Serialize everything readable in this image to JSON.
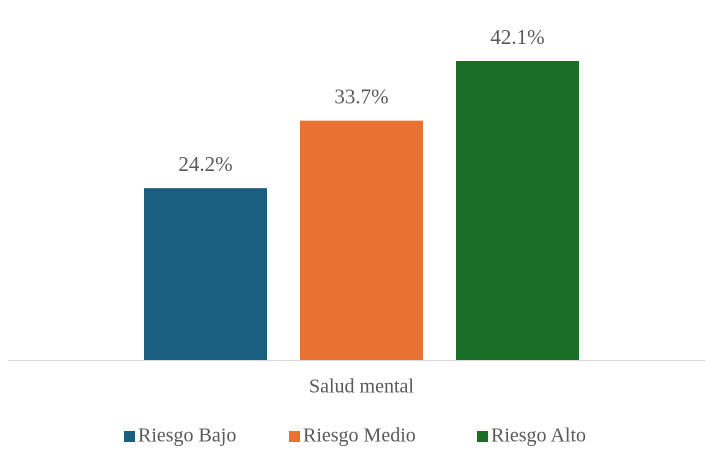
{
  "chart_data": {
    "type": "bar",
    "categories": [
      "Salud mental"
    ],
    "series": [
      {
        "name": "Riesgo Bajo",
        "color": "#1a5e80",
        "values": [
          24.2
        ],
        "value_labels": [
          "24.2%"
        ]
      },
      {
        "name": "Riesgo Medio",
        "color": "#e97132",
        "values": [
          33.7
        ],
        "value_labels": [
          "33.7%"
        ]
      },
      {
        "name": "Riesgo Alto",
        "color": "#1a6e28",
        "values": [
          42.1
        ],
        "value_labels": [
          "42.1%"
        ]
      }
    ]
  }
}
